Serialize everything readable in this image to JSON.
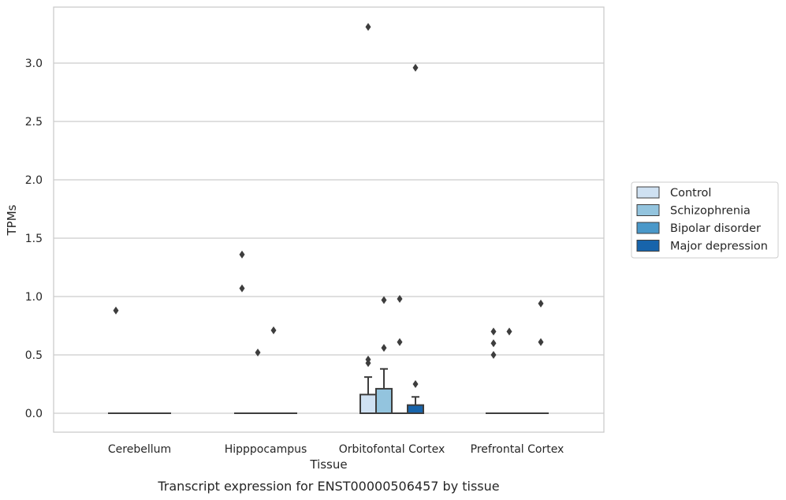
{
  "chart_data": {
    "type": "box",
    "caption": "Transcript expression for ENST00000506457 by tissue",
    "xlabel": "Tissue",
    "ylabel": "TPMs",
    "ylim": [
      -0.16,
      3.46
    ],
    "yticks": [
      0.0,
      0.5,
      1.0,
      1.5,
      2.0,
      2.5,
      3.0
    ],
    "ytick_labels": [
      "0.0",
      "0.5",
      "1.0",
      "1.5",
      "2.0",
      "2.5",
      "3.0"
    ],
    "grid": "horizontal",
    "legend_position": "right",
    "categories": [
      "Cerebellum",
      "Hipppocampus",
      "Orbitofontal Cortex",
      "Prefrontal Cortex"
    ],
    "series": [
      {
        "name": "Control",
        "color": "#cfe1f2",
        "boxes": [
          {
            "q1": 0,
            "median": 0,
            "q3": 0,
            "whisker_low": 0,
            "whisker_high": 0,
            "outliers": [
              0.88
            ]
          },
          {
            "q1": 0,
            "median": 0,
            "q3": 0,
            "whisker_low": 0,
            "whisker_high": 0,
            "outliers": [
              1.36,
              1.07
            ]
          },
          {
            "q1": 0,
            "median": 0,
            "q3": 0.16,
            "whisker_low": 0,
            "whisker_high": 0.31,
            "outliers": [
              3.31,
              0.46,
              0.43
            ]
          },
          {
            "q1": 0,
            "median": 0,
            "q3": 0,
            "whisker_low": 0,
            "whisker_high": 0,
            "outliers": [
              0.7,
              0.6,
              0.5
            ]
          }
        ]
      },
      {
        "name": "Schizophrenia",
        "color": "#93c4de",
        "boxes": [
          {
            "q1": 0,
            "median": 0,
            "q3": 0,
            "whisker_low": 0,
            "whisker_high": 0,
            "outliers": []
          },
          {
            "q1": 0,
            "median": 0,
            "q3": 0,
            "whisker_low": 0,
            "whisker_high": 0,
            "outliers": [
              0.52
            ]
          },
          {
            "q1": 0,
            "median": 0,
            "q3": 0.21,
            "whisker_low": 0,
            "whisker_high": 0.38,
            "outliers": [
              0.97,
              0.56
            ]
          },
          {
            "q1": 0,
            "median": 0,
            "q3": 0,
            "whisker_low": 0,
            "whisker_high": 0,
            "outliers": [
              0.7
            ]
          }
        ]
      },
      {
        "name": "Bipolar disorder",
        "color": "#4a98c9",
        "boxes": [
          {
            "q1": 0,
            "median": 0,
            "q3": 0,
            "whisker_low": 0,
            "whisker_high": 0,
            "outliers": []
          },
          {
            "q1": 0,
            "median": 0,
            "q3": 0,
            "whisker_low": 0,
            "whisker_high": 0,
            "outliers": [
              0.71
            ]
          },
          {
            "q1": 0,
            "median": 0,
            "q3": 0,
            "whisker_low": 0,
            "whisker_high": 0,
            "outliers": [
              0.98,
              0.61
            ]
          },
          {
            "q1": 0,
            "median": 0,
            "q3": 0,
            "whisker_low": 0,
            "whisker_high": 0,
            "outliers": []
          }
        ]
      },
      {
        "name": "Major depression",
        "color": "#1764ab",
        "boxes": [
          {
            "q1": 0,
            "median": 0,
            "q3": 0,
            "whisker_low": 0,
            "whisker_high": 0,
            "outliers": []
          },
          {
            "q1": 0,
            "median": 0,
            "q3": 0,
            "whisker_low": 0,
            "whisker_high": 0,
            "outliers": []
          },
          {
            "q1": 0,
            "median": 0,
            "q3": 0.07,
            "whisker_low": 0,
            "whisker_high": 0.14,
            "outliers": [
              2.96,
              0.25
            ]
          },
          {
            "q1": 0,
            "median": 0,
            "q3": 0,
            "whisker_low": 0,
            "whisker_high": 0,
            "outliers": [
              0.94,
              0.61
            ]
          }
        ]
      }
    ]
  }
}
